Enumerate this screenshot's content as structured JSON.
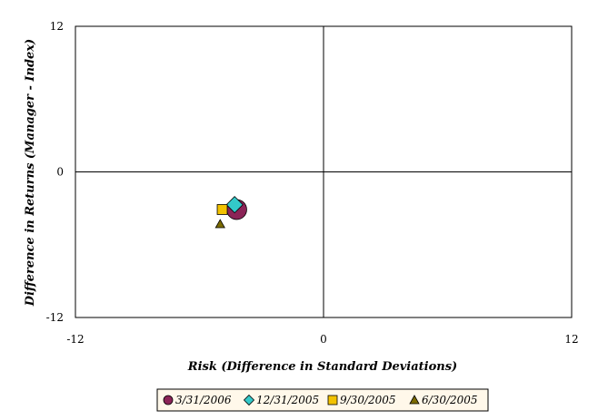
{
  "chart_data": {
    "type": "scatter",
    "title": "",
    "xlabel": "Risk (Difference in Standard Deviations)",
    "ylabel": "Difference in Returns (Manager - Index)",
    "xlim": [
      -12,
      12
    ],
    "ylim": [
      -12,
      12
    ],
    "xticks": [
      "-12",
      "0",
      "12"
    ],
    "yticks": [
      "12",
      "0",
      "-12"
    ],
    "grid": false,
    "legend_position": "bottom",
    "series": [
      {
        "name": "3/31/2006",
        "marker": "circle",
        "color": "#8b2457",
        "points": [
          {
            "x": -4.2,
            "y": -3.1
          }
        ]
      },
      {
        "name": "12/31/2005",
        "marker": "diamond",
        "color": "#33c9c9",
        "points": [
          {
            "x": -4.3,
            "y": -2.7
          }
        ]
      },
      {
        "name": "9/30/2005",
        "marker": "square",
        "color": "#f2c200",
        "points": [
          {
            "x": -4.9,
            "y": -3.1
          }
        ]
      },
      {
        "name": "6/30/2005",
        "marker": "triangle",
        "color": "#7a6a00",
        "points": [
          {
            "x": -5.0,
            "y": -4.3
          }
        ]
      }
    ]
  }
}
